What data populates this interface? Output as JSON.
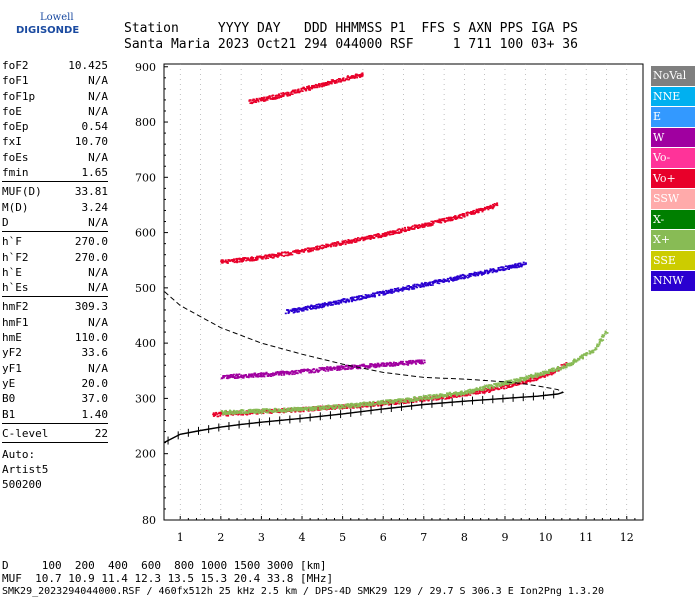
{
  "logo": {
    "top": "Lowell",
    "bottom": "DIGISONDE"
  },
  "header": {
    "line1": "Station     YYYY DAY   DDD HHMMSS P1  FFS S AXN PPS IGA PS",
    "line2": "Santa Maria 2023 Oct21 294 044000 RSF     1 711 100 03+ 36"
  },
  "params": {
    "g1": [
      [
        "foF2",
        "10.425"
      ],
      [
        "foF1",
        "N/A"
      ],
      [
        "foF1p",
        "N/A"
      ],
      [
        "foE",
        "N/A"
      ],
      [
        "foEp",
        "0.54"
      ],
      [
        "fxI",
        "10.70"
      ],
      [
        "foEs",
        "N/A"
      ],
      [
        "fmin",
        "1.65"
      ]
    ],
    "g2": [
      [
        "MUF(D)",
        "33.81"
      ],
      [
        "M(D)",
        "3.24"
      ],
      [
        "D",
        "N/A"
      ]
    ],
    "g3": [
      [
        "h`F",
        "270.0"
      ],
      [
        "h`F2",
        "270.0"
      ],
      [
        "h`E",
        "N/A"
      ],
      [
        "h`Es",
        "N/A"
      ]
    ],
    "g4": [
      [
        "hmF2",
        "309.3"
      ],
      [
        "hmF1",
        "N/A"
      ],
      [
        "hmE",
        "110.0"
      ],
      [
        "yF2",
        "33.6"
      ],
      [
        "yF1",
        "N/A"
      ],
      [
        "yE",
        "20.0"
      ],
      [
        "B0",
        "37.0"
      ],
      [
        "B1",
        "1.40"
      ]
    ],
    "g5": [
      [
        "C-level",
        "22"
      ]
    ],
    "auto": [
      "Auto:",
      "Artist5",
      "500200"
    ]
  },
  "legend": [
    {
      "label": "NoVal",
      "color": "#7f7f7f"
    },
    {
      "label": "NNE",
      "color": "#00b0f0"
    },
    {
      "label": "E",
      "color": "#3399ff"
    },
    {
      "label": "W",
      "color": "#a000a0"
    },
    {
      "label": "Vo-",
      "color": "#ff3399"
    },
    {
      "label": "Vo+",
      "color": "#e8002a"
    },
    {
      "label": "SSW",
      "color": "#ffaaaa"
    },
    {
      "label": "X-",
      "color": "#007f00"
    },
    {
      "label": "X+",
      "color": "#88bb55"
    },
    {
      "label": "SSE",
      "color": "#cccc00"
    },
    {
      "label": "NNW",
      "color": "#2a00d0"
    }
  ],
  "bottom": {
    "line1": "D     100  200  400  600  800 1000 1500 3000 [km]",
    "line2": "MUF  10.7 10.9 11.4 12.3 13.5 15.3 20.4 33.8 [MHz]",
    "line3": "SMK29_2023294044000.RSF / 460fx512h 25 kHz 2.5 km / DPS-4D SMK29 129 / 29.7 S 306.3 E Ion2Png 1.3.20"
  },
  "chart_data": {
    "type": "scatter",
    "xlim": [
      0.6,
      12.4
    ],
    "ylim": [
      80,
      905
    ],
    "x_ticks": [
      1,
      2,
      3,
      4,
      5,
      6,
      7,
      8,
      9,
      10,
      11,
      12
    ],
    "y_ticks": [
      80,
      200,
      300,
      400,
      500,
      600,
      700,
      800,
      900
    ],
    "series": [
      {
        "name": "Vo+",
        "color": "#e8002a",
        "x": [
          1.8,
          2.5,
          3.5,
          4.5,
          5.5,
          6.5,
          7.5,
          8.5,
          9.5,
          10.2,
          10.5
        ],
        "y": [
          272,
          275,
          279,
          284,
          289,
          296,
          304,
          315,
          332,
          350,
          365
        ]
      },
      {
        "name": "X+",
        "color": "#88bb55",
        "x": [
          2.0,
          3.5,
          5.0,
          6.5,
          8.0,
          9.5,
          10.5,
          11.2,
          11.5
        ],
        "y": [
          276,
          280,
          287,
          298,
          312,
          338,
          360,
          390,
          425
        ]
      },
      {
        "name": "Vo+",
        "color": "#e8002a",
        "x": [
          2.0,
          3.0,
          4.0,
          5.0,
          6.0,
          7.0,
          8.0,
          8.8
        ],
        "y": [
          548,
          556,
          568,
          583,
          598,
          615,
          633,
          652
        ]
      },
      {
        "name": "Vo+",
        "color": "#e8002a",
        "x": [
          2.7,
          3.2,
          3.5,
          4.0,
          4.5,
          5.5
        ],
        "y": [
          838,
          845,
          850,
          860,
          870,
          888
        ]
      },
      {
        "name": "NNW",
        "color": "#2a00d0",
        "x": [
          3.6,
          4.5,
          5.5,
          6.5,
          7.5,
          8.5,
          9.5
        ],
        "y": [
          458,
          470,
          485,
          500,
          515,
          530,
          545
        ]
      },
      {
        "name": "W",
        "color": "#a000a0",
        "x": [
          2.0,
          3.0,
          4.0,
          4.8,
          6.0,
          7.0
        ],
        "y": [
          340,
          344,
          350,
          356,
          362,
          368
        ]
      }
    ],
    "true_height_profile": {
      "x": [
        0.6,
        1.0,
        1.5,
        2.0,
        2.5,
        3.0,
        4.0,
        5.0,
        6.0,
        7.0,
        8.0,
        9.0,
        9.8,
        10.3,
        10.43,
        10.3,
        10.0,
        9.5,
        9.0,
        8.0,
        7.0,
        6.0,
        5.0,
        4.0,
        3.0,
        2.0,
        1.0,
        0.6
      ],
      "y": [
        220,
        235,
        242,
        248,
        253,
        257,
        264,
        272,
        281,
        289,
        295,
        300,
        304,
        308,
        311,
        316,
        320,
        326,
        330,
        335,
        338,
        347,
        362,
        380,
        400,
        428,
        468,
        494
      ]
    }
  }
}
